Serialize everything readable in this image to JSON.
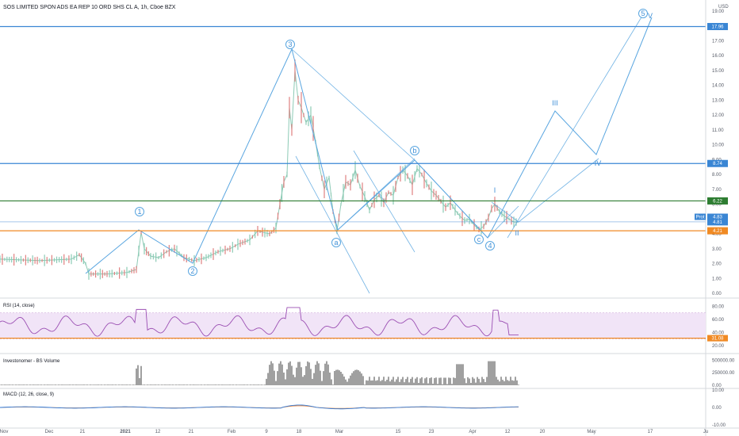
{
  "header": {
    "title": "SOS LIMITED SPON ADS EA REP 10 ORD SHS CL A, 1h, Cboe BZX",
    "currency": "USD"
  },
  "colors": {
    "wave": "#5aa6e0",
    "hline_blue": "#3a86d4",
    "hline_green": "#2e7d32",
    "hline_orange": "#f08a24",
    "candle_up": "#8ccab5",
    "candle_down": "#e08080",
    "rsi_line": "#9b4fb3",
    "rsi_band": "#f1e4f7",
    "volume_bar": "#404040",
    "macd_line": "#2f7ad9",
    "signal_line": "#f0883e"
  },
  "chart_data": [
    {
      "type": "line",
      "name": "price",
      "ylim": [
        0,
        19
      ],
      "y_ticks": [
        "0.00",
        "1.00",
        "2.00",
        "3.00",
        "4.00",
        "5.00",
        "6.00",
        "7.00",
        "8.00",
        "9.00",
        "10.00",
        "11.00",
        "12.00",
        "13.00",
        "14.00",
        "15.00",
        "16.00",
        "17.00",
        "18.00",
        "19.00"
      ],
      "x_ticks": [
        "Nov",
        "Dec",
        "21",
        "2021",
        "12",
        "21",
        "Feb",
        "9",
        "18",
        "Mar",
        "15",
        "23",
        "Apr",
        "12",
        "20",
        "May",
        "17",
        "Ju"
      ],
      "price_path": [
        [
          0,
          2.3
        ],
        [
          50,
          2.2
        ],
        [
          90,
          2.3
        ],
        [
          100,
          2.6
        ],
        [
          108,
          2.0
        ],
        [
          112,
          1.3
        ],
        [
          135,
          1.3
        ],
        [
          160,
          1.4
        ],
        [
          172,
          1.6
        ],
        [
          178,
          4.1
        ],
        [
          182,
          3.0
        ],
        [
          190,
          2.5
        ],
        [
          200,
          2.4
        ],
        [
          210,
          2.8
        ],
        [
          220,
          3.0
        ],
        [
          232,
          2.4
        ],
        [
          245,
          2.2
        ],
        [
          260,
          2.4
        ],
        [
          275,
          2.8
        ],
        [
          290,
          3.0
        ],
        [
          300,
          3.3
        ],
        [
          315,
          3.6
        ],
        [
          325,
          4.2
        ],
        [
          340,
          4.0
        ],
        [
          348,
          4.4
        ],
        [
          353,
          6.0
        ],
        [
          358,
          7.5
        ],
        [
          362,
          8.0
        ],
        [
          365,
          12.5
        ],
        [
          368,
          11.0
        ],
        [
          372,
          15.0
        ],
        [
          376,
          13.0
        ],
        [
          380,
          12.5
        ],
        [
          386,
          11.5
        ],
        [
          392,
          12.0
        ],
        [
          398,
          10.2
        ],
        [
          403,
          8.5
        ],
        [
          409,
          7.0
        ],
        [
          415,
          7.8
        ],
        [
          420,
          5.5
        ],
        [
          425,
          4.2
        ],
        [
          430,
          6.0
        ],
        [
          436,
          7.5
        ],
        [
          442,
          7.3
        ],
        [
          448,
          8.3
        ],
        [
          454,
          7.2
        ],
        [
          460,
          6.5
        ],
        [
          466,
          5.6
        ],
        [
          472,
          6.3
        ],
        [
          478,
          6.6
        ],
        [
          484,
          6.1
        ],
        [
          490,
          6.8
        ],
        [
          496,
          6.6
        ],
        [
          502,
          7.8
        ],
        [
          508,
          8.3
        ],
        [
          514,
          7.9
        ],
        [
          520,
          7.3
        ],
        [
          526,
          8.4
        ],
        [
          532,
          8.0
        ],
        [
          538,
          7.4
        ],
        [
          544,
          6.9
        ],
        [
          550,
          6.6
        ],
        [
          556,
          6.2
        ],
        [
          562,
          5.8
        ],
        [
          568,
          6.1
        ],
        [
          574,
          5.6
        ],
        [
          580,
          5.2
        ],
        [
          586,
          4.9
        ],
        [
          592,
          5.0
        ],
        [
          598,
          4.6
        ],
        [
          604,
          4.3
        ],
        [
          610,
          4.5
        ],
        [
          616,
          5.1
        ],
        [
          620,
          5.7
        ],
        [
          624,
          6.0
        ],
        [
          630,
          5.5
        ],
        [
          636,
          5.2
        ],
        [
          642,
          5.0
        ],
        [
          648,
          4.8
        ],
        [
          654,
          4.8
        ]
      ],
      "horizontal_levels": [
        {
          "value": 17.96,
          "label": "17.96",
          "color": "#3a86d4"
        },
        {
          "value": 8.74,
          "label": "8.74",
          "color": "#3a86d4"
        },
        {
          "value": 6.22,
          "label": "6.22",
          "color": "#2e7d32"
        },
        {
          "value": 4.81,
          "label": "4.81",
          "color": "#3a86d4"
        },
        {
          "value": 4.21,
          "label": "4.21",
          "color": "#f08a24"
        }
      ],
      "last_price": {
        "label": "Prot",
        "value": "4.83"
      },
      "wave_labels": [
        {
          "text": "1",
          "circled": true
        },
        {
          "text": "2",
          "circled": true
        },
        {
          "text": "3",
          "circled": true
        },
        {
          "text": "a",
          "circled": true
        },
        {
          "text": "b",
          "circled": true
        },
        {
          "text": "c",
          "circled": true
        },
        {
          "text": "4",
          "circled": true
        },
        {
          "text": "5",
          "circled": true
        },
        {
          "text": "V",
          "circled": false
        },
        {
          "text": "I",
          "circled": false
        },
        {
          "text": "II",
          "circled": false
        },
        {
          "text": "III",
          "circled": false
        },
        {
          "text": "IV",
          "circled": false
        }
      ]
    },
    {
      "type": "line",
      "name": "RSI (14, close)",
      "label": "RSI (14, close)",
      "y_ticks": [
        "80.00",
        "60.00",
        "40.00",
        "20.00"
      ],
      "band": [
        30,
        70
      ],
      "current": "31.08"
    },
    {
      "type": "bar",
      "name": "Investonomer - BS Volume",
      "label": "Investonomer - BS Volume",
      "y_ticks": [
        "500000.00",
        "250000.00",
        "0.00"
      ]
    },
    {
      "type": "line",
      "name": "MACD (12, 26, close, 9)",
      "label": "MACD (12, 26, close, 9)",
      "y_ticks": [
        "10.00",
        "0.00",
        "-10.00"
      ]
    }
  ]
}
